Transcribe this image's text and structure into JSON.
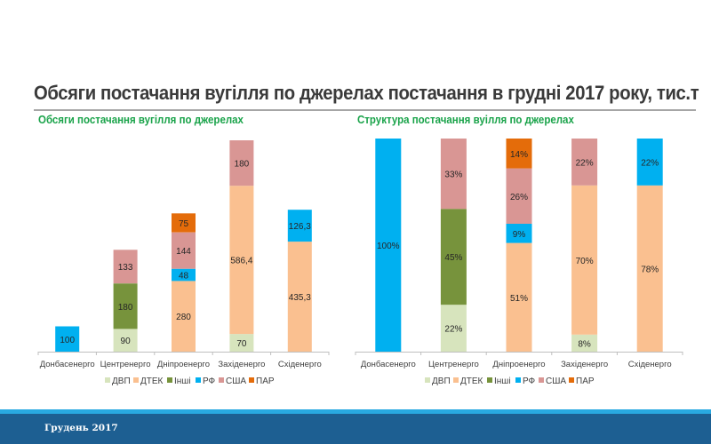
{
  "page": {
    "title": "Обсяги постачання вугілля по джерелах постачання в грудні 2017 року, тис.т",
    "footer": "Грудень 2017"
  },
  "colors": {
    "ДВП": "#d7e4bd",
    "ДТЕК": "#fac090",
    "Інші": "#77933c",
    "РФ": "#00b0f0",
    "США": "#d99694",
    "ПАР": "#e46c0a",
    "title_green": "#1aa34a",
    "footer_blue": "#1d5f92",
    "footer_stripe": "#29a9e1"
  },
  "chart_data": [
    {
      "type": "bar",
      "stacked": true,
      "title": "Обсяги постачання вугілля по джерелах",
      "xlabel": "",
      "ylabel": "",
      "grid": false,
      "legend_position": "bottom",
      "categories": [
        "Донбасенерго",
        "Центренерго",
        "Дніпроенерго",
        "Західенерго",
        "Східенерго"
      ],
      "series": [
        {
          "name": "ДВП",
          "values": [
            null,
            90,
            null,
            70,
            null
          ],
          "labels": [
            "",
            "90",
            "",
            "70",
            ""
          ]
        },
        {
          "name": "ДТЕК",
          "values": [
            null,
            null,
            280,
            586.4,
            435.3
          ],
          "labels": [
            "",
            "",
            "280",
            "586,4",
            "435,3"
          ]
        },
        {
          "name": "Інші",
          "values": [
            null,
            180,
            null,
            null,
            null
          ],
          "labels": [
            "",
            "180",
            "",
            "",
            ""
          ]
        },
        {
          "name": "РФ",
          "values": [
            100,
            null,
            48,
            null,
            126.3
          ],
          "labels": [
            "100",
            "",
            "48",
            "",
            "126,3"
          ]
        },
        {
          "name": "США",
          "values": [
            null,
            133,
            144,
            180,
            null
          ],
          "labels": [
            "",
            "133",
            "144",
            "180",
            ""
          ]
        },
        {
          "name": "ПАР",
          "values": [
            null,
            null,
            75,
            null,
            null
          ],
          "labels": [
            "",
            "",
            "75",
            "",
            ""
          ]
        }
      ],
      "ylim": [
        0,
        840
      ]
    },
    {
      "type": "bar",
      "stacked": true,
      "percent": true,
      "title": "Структура постачання вуілля по джерелах",
      "xlabel": "",
      "ylabel": "",
      "grid": false,
      "legend_position": "bottom",
      "categories": [
        "Донбасенерго",
        "Центренерго",
        "Дніпроенерго",
        "Західенерго",
        "Східенерго"
      ],
      "series": [
        {
          "name": "ДВП",
          "values": [
            null,
            22,
            null,
            8,
            null
          ],
          "labels": [
            "",
            "22%",
            "",
            "8%",
            ""
          ]
        },
        {
          "name": "ДТЕК",
          "values": [
            null,
            null,
            51,
            70,
            78
          ],
          "labels": [
            "",
            "",
            "51%",
            "70%",
            "78%"
          ]
        },
        {
          "name": "Інші",
          "values": [
            null,
            45,
            null,
            null,
            null
          ],
          "labels": [
            "",
            "45%",
            "",
            "",
            ""
          ]
        },
        {
          "name": "РФ",
          "values": [
            100,
            null,
            9,
            null,
            22
          ],
          "labels": [
            "100%",
            "",
            "9%",
            "",
            "22%"
          ]
        },
        {
          "name": "США",
          "values": [
            null,
            33,
            26,
            22,
            null
          ],
          "labels": [
            "",
            "33%",
            "26%",
            "22%",
            ""
          ]
        },
        {
          "name": "ПАР",
          "values": [
            null,
            null,
            14,
            null,
            null
          ],
          "labels": [
            "",
            "",
            "14%",
            "",
            ""
          ]
        }
      ],
      "ylim": [
        0,
        100
      ]
    }
  ]
}
